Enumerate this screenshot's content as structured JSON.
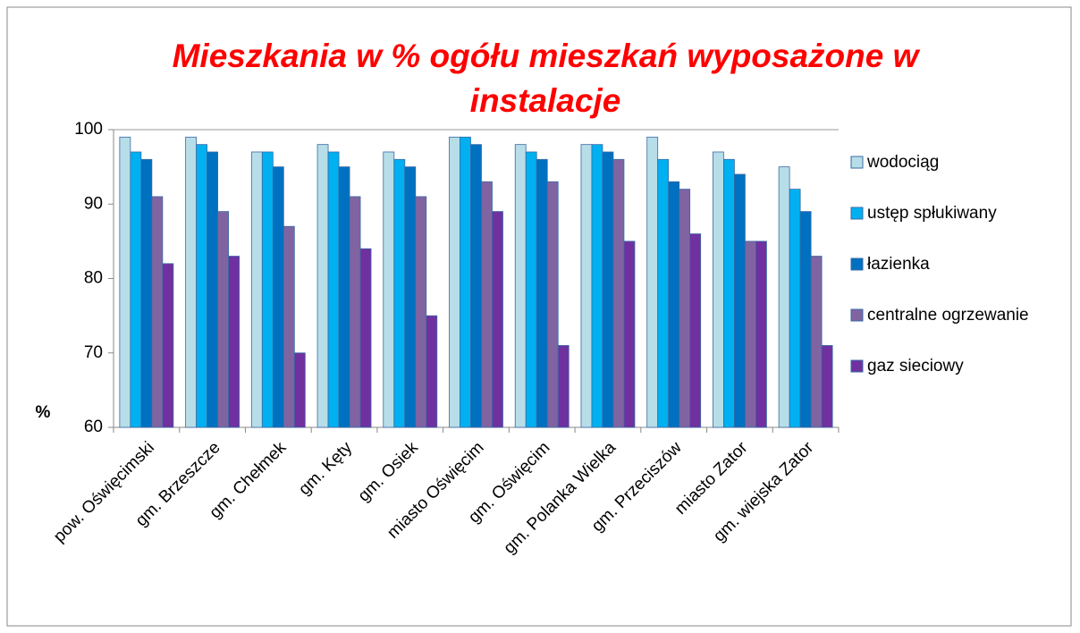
{
  "chart_data": {
    "type": "bar",
    "title": "Mieszkania w %  ogółu mieszkań wyposażone w instalacje",
    "y_label": "%",
    "categories": [
      "pow. Oświęcimski",
      "gm. Brzeszcze",
      "gm. Chełmek",
      "gm. Kęty",
      "gm. Osiek",
      "miasto Oświęcim",
      "gm. Oświęcim",
      "gm. Polanka Wielka",
      "gm. Przeciszów",
      "miasto Zator",
      "gm. wiejska Zator"
    ],
    "series": [
      {
        "name": "wodociąg",
        "color": "#b7dde8",
        "values": [
          99,
          99,
          97,
          98,
          97,
          99,
          98,
          98,
          99,
          97,
          95
        ]
      },
      {
        "name": "ustęp spłukiwany",
        "color": "#00b0f0",
        "values": [
          97,
          98,
          97,
          97,
          96,
          99,
          97,
          98,
          96,
          96,
          92
        ]
      },
      {
        "name": "łazienka",
        "color": "#0070c0",
        "values": [
          96,
          97,
          95,
          95,
          95,
          98,
          96,
          97,
          93,
          94,
          89
        ]
      },
      {
        "name": "centralne ogrzewanie",
        "color": "#8064a2",
        "values": [
          91,
          89,
          87,
          91,
          91,
          93,
          93,
          96,
          92,
          85,
          83
        ]
      },
      {
        "name": "gaz sieciowy",
        "color": "#7030a0",
        "values": [
          82,
          83,
          70,
          84,
          75,
          89,
          71,
          85,
          86,
          85,
          71
        ]
      }
    ],
    "ylim": [
      60,
      100
    ],
    "yticks": [
      60,
      70,
      80,
      90,
      100
    ],
    "grid": false,
    "legend": "right"
  }
}
